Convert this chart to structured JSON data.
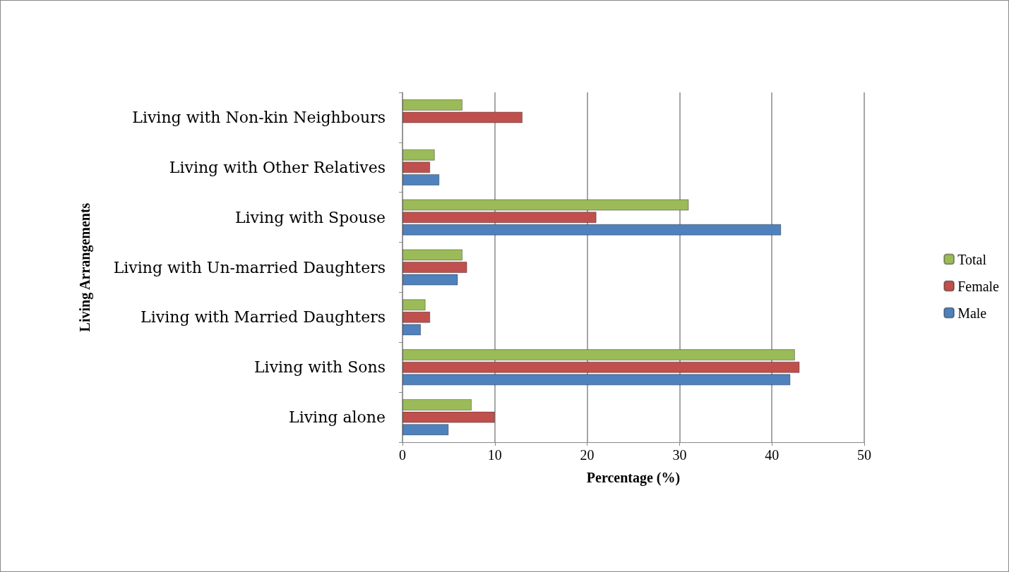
{
  "chart_data": {
    "type": "bar",
    "orientation": "horizontal",
    "xlabel": "Percentage (%)",
    "ylabel": "Living Arrangements",
    "categories": [
      "Living with Non-kin Neighbours",
      "Living with Other Relatives",
      "Living with Spouse",
      "Living with Un-married Daughters",
      "Living with Married Daughters",
      "Living with Sons",
      "Living alone"
    ],
    "series": [
      {
        "name": "Total",
        "color": "#9bbb59",
        "values": [
          6.5,
          3.5,
          31,
          6.5,
          2.5,
          42.5,
          7.5
        ]
      },
      {
        "name": "Female",
        "color": "#c0504d",
        "values": [
          13,
          3,
          21,
          7,
          3,
          43,
          10
        ]
      },
      {
        "name": "Male",
        "color": "#4f81bd",
        "values": [
          null,
          4,
          41,
          6,
          2,
          42,
          5
        ]
      }
    ],
    "xlim": [
      0,
      50
    ],
    "xticks": [
      0,
      10,
      20,
      30,
      40,
      50
    ],
    "grid": "x",
    "legend": "right"
  }
}
